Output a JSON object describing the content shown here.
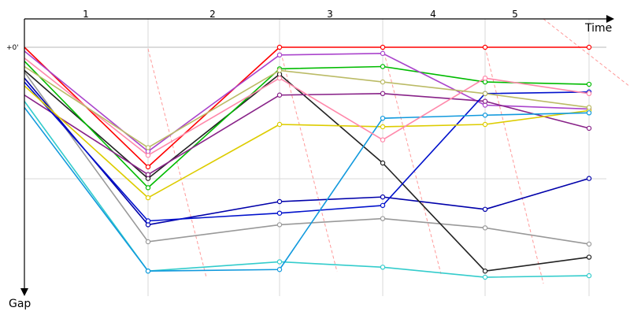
{
  "chart_data": {
    "type": "line",
    "xlabel": "Time",
    "ylabel": "Gap",
    "x_ticks": [
      "1",
      "2",
      "3",
      "4",
      "5"
    ],
    "y_ticks": [
      "+0'"
    ],
    "x": [
      0,
      1,
      2,
      3,
      4,
      5
    ],
    "grid": true,
    "legend": "none",
    "series": [
      {
        "color": "#ff0000",
        "values": [
          0,
          155,
          0,
          0,
          0,
          0
        ]
      },
      {
        "color": "#999999",
        "values": [
          32,
          252,
          230,
          222,
          234,
          255
        ]
      },
      {
        "color": "#0000aa",
        "values": [
          40,
          230,
          200,
          194,
          210,
          170
        ]
      },
      {
        "color": "#222222",
        "values": [
          30,
          170,
          35,
          150,
          290,
          272
        ]
      },
      {
        "color": "#00bb00",
        "values": [
          18,
          182,
          28,
          25,
          45,
          48
        ]
      },
      {
        "color": "#aa44cc",
        "values": [
          5,
          135,
          10,
          8,
          75,
          80
        ]
      },
      {
        "color": "#882288",
        "values": [
          62,
          165,
          62,
          60,
          70,
          105
        ]
      },
      {
        "color": "#0011cc",
        "values": [
          45,
          225,
          215,
          205,
          60,
          58
        ]
      },
      {
        "color": "#33cccc",
        "values": [
          70,
          290,
          278,
          285,
          298,
          296
        ]
      },
      {
        "color": "#ddcc00",
        "values": [
          50,
          195,
          100,
          103,
          100,
          82
        ]
      },
      {
        "color": "#1199dd",
        "values": [
          78,
          290,
          288,
          92,
          88,
          85
        ]
      },
      {
        "color": "#ff88aa",
        "values": [
          14,
          140,
          40,
          120,
          40,
          60
        ]
      },
      {
        "color": "#bbbb66",
        "values": [
          25,
          130,
          30,
          45,
          60,
          78
        ]
      }
    ]
  }
}
